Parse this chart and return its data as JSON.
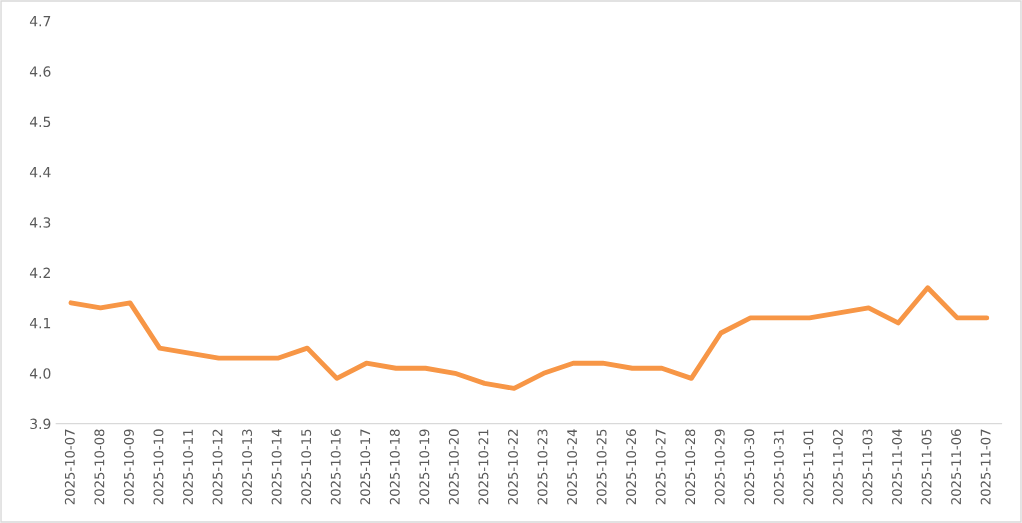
{
  "chart_data": {
    "type": "line",
    "categories": [
      "2025-10-07",
      "2025-10-08",
      "2025-10-09",
      "2025-10-10",
      "2025-10-11",
      "2025-10-12",
      "2025-10-13",
      "2025-10-14",
      "2025-10-15",
      "2025-10-16",
      "2025-10-17",
      "2025-10-18",
      "2025-10-19",
      "2025-10-20",
      "2025-10-21",
      "2025-10-22",
      "2025-10-23",
      "2025-10-24",
      "2025-10-25",
      "2025-10-26",
      "2025-10-27",
      "2025-10-28",
      "2025-10-29",
      "2025-10-30",
      "2025-10-31",
      "2025-11-01",
      "2025-11-02",
      "2025-11-03",
      "2025-11-04",
      "2025-11-05",
      "2025-11-06",
      "2025-11-07"
    ],
    "series": [
      {
        "color": "#f79646",
        "values": [
          4.14,
          4.13,
          4.14,
          4.05,
          4.04,
          4.03,
          4.03,
          4.03,
          4.05,
          3.99,
          4.02,
          4.01,
          4.01,
          4.0,
          3.98,
          3.97,
          4.0,
          4.02,
          4.02,
          4.01,
          4.01,
          3.99,
          4.08,
          4.11,
          4.11,
          4.11,
          4.12,
          4.13,
          4.1,
          4.17,
          4.11,
          4.11
        ]
      }
    ],
    "ylim": [
      3.9,
      4.7
    ],
    "yticks": [
      {
        "value": 3.9,
        "label": "3.9"
      },
      {
        "value": 4.0,
        "label": "4.0"
      },
      {
        "value": 4.1,
        "label": "4.1"
      },
      {
        "value": 4.2,
        "label": "4.2"
      },
      {
        "value": 4.3,
        "label": "4.3"
      },
      {
        "value": 4.4,
        "label": "4.4"
      },
      {
        "value": 4.5,
        "label": "4.5"
      },
      {
        "value": 4.6,
        "label": "4.6"
      },
      {
        "value": 4.7,
        "label": "4.7"
      }
    ],
    "marker": "none",
    "line_style": "solid"
  }
}
